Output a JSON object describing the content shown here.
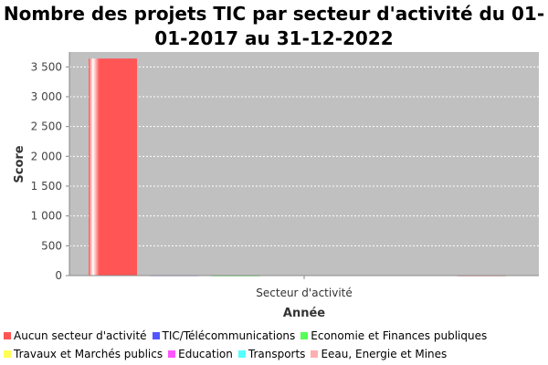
{
  "chart_data": {
    "type": "bar",
    "title": "Nombre des projets TIC par secteur d'activité du 01-01-2017 au 31-12-2022",
    "xlabel": "Année",
    "ylabel": "Score",
    "categories": [
      "Secteur d'activité"
    ],
    "ylim": [
      0,
      3750
    ],
    "yticks": [
      0,
      500,
      1000,
      1500,
      2000,
      2500,
      3000,
      3500
    ],
    "ytick_labels": [
      "0",
      "500",
      "1 000",
      "1 500",
      "2 000",
      "2 500",
      "3 000",
      "3 500"
    ],
    "grid": true,
    "legend_position": "bottom",
    "series": [
      {
        "name": "Aucun secteur d'activité",
        "color": "#ff5555",
        "values": [
          3640
        ]
      },
      {
        "name": "TIC/Télécommunications",
        "color": "#5555ff",
        "values": [
          6
        ]
      },
      {
        "name": "Economie et Finances publiques",
        "color": "#55ff55",
        "values": [
          3
        ]
      },
      {
        "name": "Travaux et Marchés publics",
        "color": "#ffff55",
        "values": [
          0
        ]
      },
      {
        "name": "Education",
        "color": "#ff55ff",
        "values": [
          0
        ]
      },
      {
        "name": "Transports",
        "color": "#55ffff",
        "values": [
          0
        ]
      },
      {
        "name": "Eeau, Energie et Mines",
        "color": "#ffafaf",
        "values": [
          2
        ]
      }
    ]
  }
}
